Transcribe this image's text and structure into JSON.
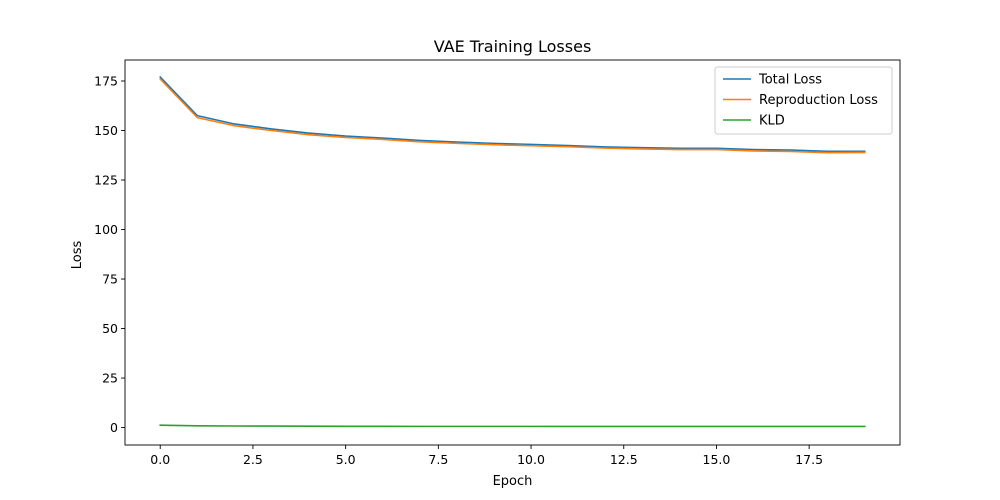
{
  "chart_data": {
    "type": "line",
    "title": "VAE Training Losses",
    "xlabel": "Epoch",
    "ylabel": "Loss",
    "xlim": [
      -0.95,
      19.95
    ],
    "ylim": [
      -8.8,
      185.6
    ],
    "xticks": [
      0.0,
      2.5,
      5.0,
      7.5,
      10.0,
      12.5,
      15.0,
      17.5
    ],
    "xtick_labels": [
      "0.0",
      "2.5",
      "5.0",
      "7.5",
      "10.0",
      "12.5",
      "15.0",
      "17.5"
    ],
    "yticks": [
      0,
      25,
      50,
      75,
      100,
      125,
      150,
      175
    ],
    "ytick_labels": [
      "0",
      "25",
      "50",
      "75",
      "100",
      "125",
      "150",
      "175"
    ],
    "grid": false,
    "legend_position": "top-right",
    "x": [
      0,
      1,
      2,
      3,
      4,
      5,
      6,
      7,
      8,
      9,
      10,
      11,
      12,
      13,
      14,
      15,
      16,
      17,
      18,
      19
    ],
    "series": [
      {
        "name": "Total Loss",
        "color": "#1f77b4",
        "values": [
          177.0,
          157.5,
          153.3,
          150.8,
          148.7,
          147.2,
          146.2,
          145.0,
          144.2,
          143.5,
          143.0,
          142.4,
          141.7,
          141.3,
          141.0,
          141.0,
          140.4,
          140.1,
          139.5,
          139.5
        ]
      },
      {
        "name": "Reproduction Loss",
        "color": "#ff7f0e",
        "values": [
          176.0,
          156.5,
          152.4,
          150.0,
          147.9,
          146.5,
          145.5,
          144.3,
          143.5,
          142.8,
          142.3,
          141.8,
          141.1,
          140.7,
          140.4,
          140.4,
          139.7,
          139.4,
          138.8,
          138.9
        ]
      },
      {
        "name": "KLD",
        "color": "#2ca02c",
        "values": [
          1.2,
          0.9,
          0.8,
          0.75,
          0.7,
          0.65,
          0.65,
          0.6,
          0.6,
          0.6,
          0.6,
          0.58,
          0.58,
          0.58,
          0.58,
          0.55,
          0.55,
          0.55,
          0.55,
          0.55
        ]
      }
    ]
  }
}
